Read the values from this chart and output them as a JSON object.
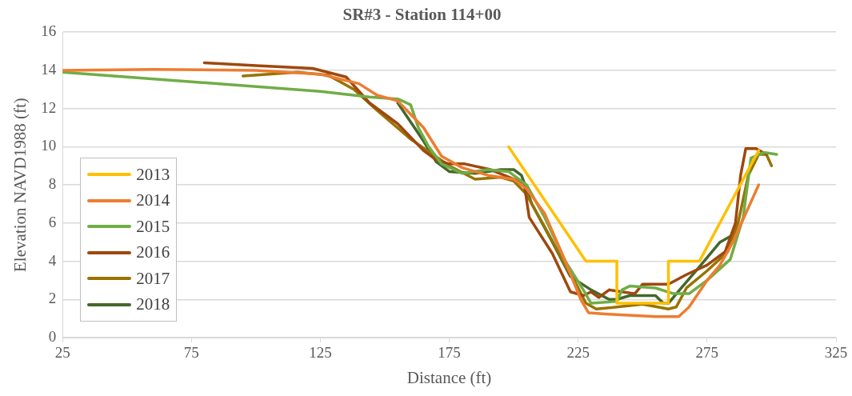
{
  "chart_data": {
    "type": "line",
    "title": "SR#3 - Station 114+00",
    "xlabel": "Distance (ft)",
    "ylabel": "Elevation NAVD1988 (ft)",
    "xlim": [
      25,
      325
    ],
    "xticks": [
      25,
      75,
      125,
      175,
      225,
      275,
      325
    ],
    "ylim": [
      0,
      16
    ],
    "yticks": [
      0,
      2,
      4,
      6,
      8,
      10,
      12,
      14,
      16
    ],
    "grid": "y",
    "legend": "bottom left",
    "marker": "none",
    "line_style": "solid",
    "series": [
      {
        "name": "2013",
        "color": "#ffc000",
        "x": [
          198,
          228,
          240,
          240,
          260,
          260,
          272,
          295
        ],
        "values": [
          10,
          4,
          4,
          1.8,
          1.8,
          4,
          4,
          9.8
        ]
      },
      {
        "name": "2014",
        "color": "#ed7d31",
        "x": [
          25,
          60,
          100,
          125,
          140,
          147,
          155,
          165,
          172,
          180,
          190,
          200,
          205,
          212,
          220,
          226,
          229,
          240,
          255,
          264,
          268,
          271,
          275,
          280,
          285,
          290,
          295
        ],
        "values": [
          14,
          14.05,
          14,
          13.8,
          13.3,
          12.7,
          12.4,
          11,
          9.5,
          8.9,
          8.5,
          8.3,
          7.8,
          6.5,
          4,
          2,
          1.3,
          1.2,
          1.1,
          1.1,
          1.6,
          2.2,
          3,
          3.8,
          5,
          6.5,
          8
        ]
      },
      {
        "name": "2015",
        "color": "#70ad47",
        "x": [
          25,
          75,
          125,
          144,
          155,
          160,
          163,
          167,
          172,
          180,
          190,
          198,
          205,
          212,
          220,
          227,
          230,
          240,
          242,
          245,
          255,
          262,
          268,
          275,
          284,
          289,
          292,
          297,
          302
        ],
        "values": [
          13.9,
          13.4,
          12.9,
          12.6,
          12.5,
          12.2,
          11,
          10,
          9.1,
          8.6,
          8.8,
          8.7,
          8,
          6.3,
          4,
          2.5,
          1.8,
          1.9,
          2.5,
          2.7,
          2.6,
          2.3,
          2.3,
          3,
          4.1,
          6.3,
          9.4,
          9.7,
          9.6
        ]
      },
      {
        "name": "2016",
        "color": "#9e480e",
        "x": [
          80,
          100,
          122,
          135,
          144,
          155,
          165,
          170,
          175,
          181,
          191,
          200,
          204,
          206,
          215,
          222,
          227,
          230,
          233,
          237,
          242,
          247,
          250,
          255,
          260,
          267,
          275,
          282,
          286,
          288,
          290,
          294,
          298
        ],
        "values": [
          14.4,
          14.25,
          14.1,
          13.65,
          12.3,
          11.2,
          9.8,
          9.3,
          9.1,
          9.1,
          8.8,
          8.3,
          8.1,
          6.3,
          4.4,
          2.4,
          2.2,
          2.4,
          2.1,
          2.5,
          2.4,
          2.3,
          2.8,
          2.8,
          2.8,
          3.3,
          3.8,
          4.5,
          6,
          8.5,
          9.9,
          9.9,
          9.6
        ]
      },
      {
        "name": "2017",
        "color": "#997300",
        "x": [
          95,
          116,
          128,
          138,
          147,
          160,
          175,
          185,
          195,
          200,
          205,
          212,
          220,
          225,
          228,
          232,
          240,
          250,
          260,
          263,
          267,
          275,
          283,
          287,
          291,
          295,
          298,
          300
        ],
        "values": [
          13.7,
          13.9,
          13.75,
          13,
          11.9,
          10.4,
          9,
          8.3,
          8.4,
          8.2,
          7.5,
          5.8,
          3.8,
          2.6,
          1.8,
          1.5,
          1.6,
          1.75,
          1.5,
          1.6,
          2.6,
          3.5,
          4.5,
          6,
          8.5,
          9.6,
          9.6,
          9
        ]
      },
      {
        "name": "2018",
        "color": "#43682b",
        "x": [
          155,
          165,
          170,
          175,
          185,
          195,
          200,
          203,
          207,
          215,
          222,
          230,
          237,
          240,
          245,
          255,
          258,
          260,
          265,
          272,
          280,
          284
        ],
        "values": [
          12.3,
          10.3,
          9.2,
          8.7,
          8.6,
          8.8,
          8.8,
          8.5,
          7,
          5,
          3.2,
          2.5,
          2,
          2,
          2.2,
          2.2,
          1.8,
          1.8,
          2.6,
          3.7,
          5,
          5.3
        ]
      }
    ]
  }
}
